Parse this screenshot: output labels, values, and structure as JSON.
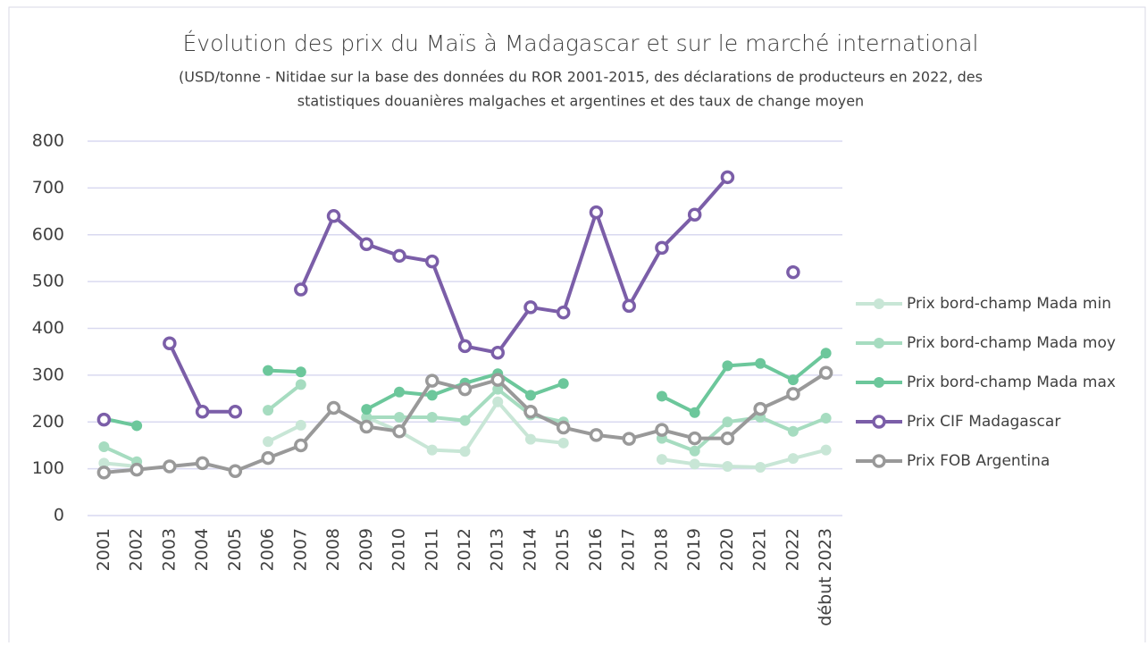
{
  "chart_data": {
    "type": "line",
    "title": "Évolution des prix du Maïs à Madagascar et sur le marché international",
    "subtitle": [
      "(USD/tonne - Nitidae sur la base des données du ROR 2001-2015, des déclarations de producteurs en 2022, des",
      "statistiques douanières malgaches et argentines et des taux de change moyen"
    ],
    "categories": [
      "2001",
      "2002",
      "2003",
      "2004",
      "2005",
      "2006",
      "2007",
      "2008",
      "2009",
      "2010",
      "2011",
      "2012",
      "2013",
      "2014",
      "2015",
      "2016",
      "2017",
      "2018",
      "2019",
      "2020",
      "2021",
      "2022",
      "début 2023"
    ],
    "series": [
      {
        "name": "Prix bord-champ Mada min",
        "color": "#c8e6d6",
        "marker": "filled",
        "values": [
          112,
          105,
          null,
          null,
          null,
          158,
          193,
          null,
          210,
          180,
          140,
          137,
          243,
          163,
          155,
          null,
          null,
          120,
          110,
          105,
          103,
          122,
          140
        ]
      },
      {
        "name": "Prix bord-champ Mada moy",
        "color": "#a6dcc0",
        "marker": "filled",
        "values": [
          147,
          115,
          null,
          null,
          null,
          225,
          280,
          null,
          210,
          210,
          210,
          203,
          270,
          215,
          200,
          null,
          null,
          165,
          138,
          200,
          210,
          180,
          208
        ]
      },
      {
        "name": "Prix bord-champ Mada max",
        "color": "#6cc79b",
        "marker": "filled",
        "values": [
          207,
          192,
          null,
          null,
          null,
          310,
          307,
          null,
          227,
          264,
          257,
          283,
          303,
          257,
          282,
          null,
          null,
          255,
          220,
          320,
          325,
          290,
          347
        ]
      },
      {
        "name": "Prix CIF Madagascar",
        "color": "#7b5ea8",
        "marker": "hollow",
        "values": [
          205,
          null,
          368,
          222,
          222,
          null,
          483,
          640,
          580,
          555,
          543,
          362,
          348,
          445,
          434,
          648,
          448,
          572,
          643,
          723,
          null,
          520,
          null
        ]
      },
      {
        "name": "Prix FOB Argentina",
        "color": "#999999",
        "marker": "hollow",
        "values": [
          92,
          98,
          105,
          112,
          95,
          123,
          150,
          230,
          190,
          180,
          288,
          270,
          290,
          222,
          188,
          172,
          164,
          183,
          165,
          165,
          228,
          260,
          305
        ]
      }
    ],
    "ylim": [
      0,
      800
    ],
    "yticks": [
      0,
      100,
      200,
      300,
      400,
      500,
      600,
      700,
      800
    ],
    "grid": true,
    "legend": "right"
  }
}
